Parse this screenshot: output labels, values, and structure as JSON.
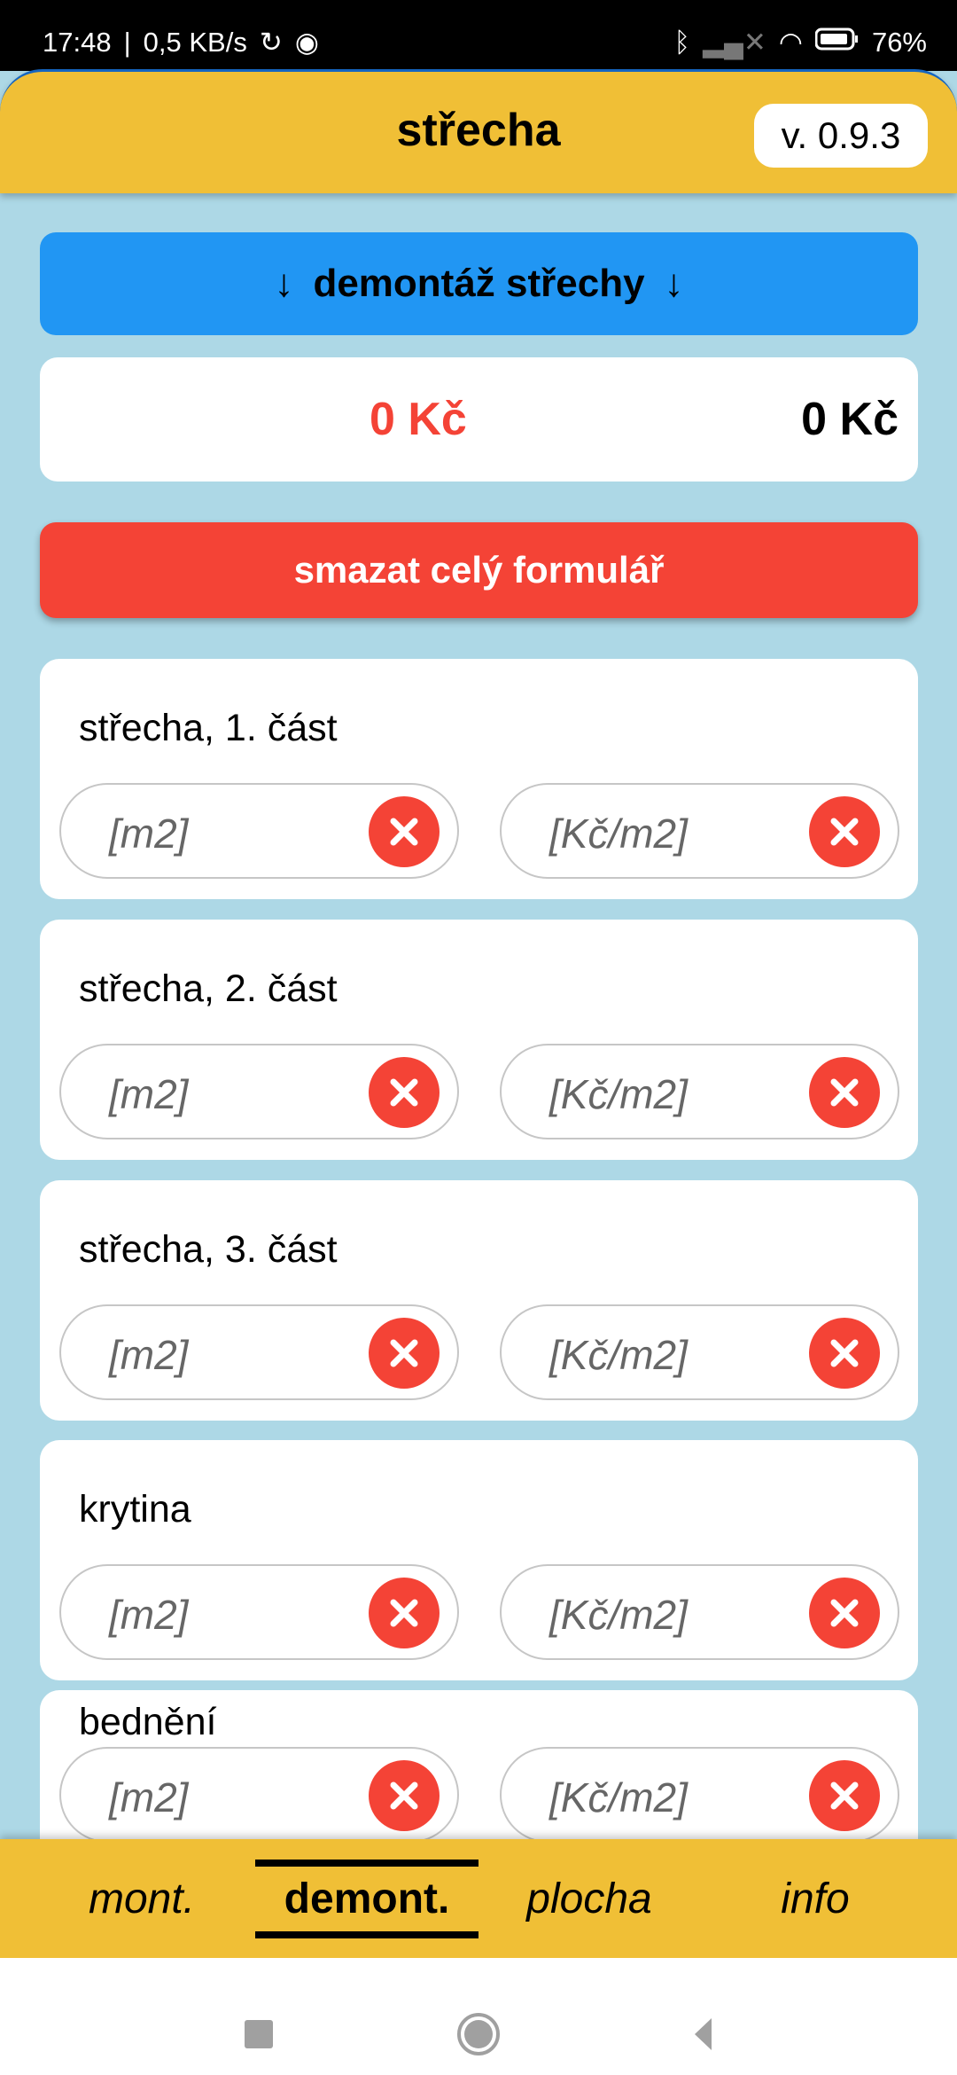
{
  "status_bar": {
    "time": "17:48",
    "speed": "0,5 KB/s",
    "battery": "76%"
  },
  "header": {
    "title": "střecha",
    "version": "v. 0.9.3"
  },
  "section_button": {
    "label": "demontáž střechy"
  },
  "totals": {
    "left": "0 Kč",
    "right": "0 Kč"
  },
  "clear_all": {
    "label": "smazat celý formulář"
  },
  "cards": [
    {
      "label": "střecha, 1. část",
      "area_placeholder": "[m2]",
      "price_placeholder": "[Kč/m2]"
    },
    {
      "label": "střecha, 2. část",
      "area_placeholder": "[m2]",
      "price_placeholder": "[Kč/m2]"
    },
    {
      "label": "střecha, 3. část",
      "area_placeholder": "[m2]",
      "price_placeholder": "[Kč/m2]"
    },
    {
      "label": "krytina",
      "area_placeholder": "[m2]",
      "price_placeholder": "[Kč/m2]"
    },
    {
      "label": "bednění",
      "area_placeholder": "[m2]",
      "price_placeholder": "[Kč/m2]"
    }
  ],
  "tabs": [
    {
      "label": "mont."
    },
    {
      "label": "demont.",
      "active": true
    },
    {
      "label": "plocha"
    },
    {
      "label": "info"
    }
  ],
  "colors": {
    "header": "#F0BF36",
    "accent_blue": "#2196F3",
    "danger": "#F44336",
    "background": "#ADD8E6"
  }
}
